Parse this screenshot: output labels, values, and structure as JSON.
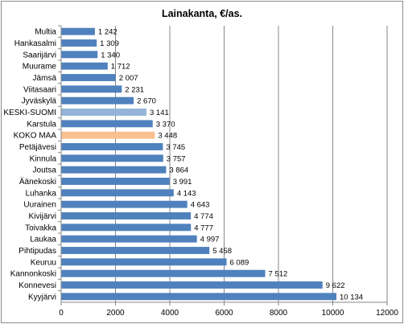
{
  "chart_data": {
    "type": "bar",
    "orientation": "horizontal",
    "title": "Lainakanta, €/as.",
    "xlabel": "",
    "ylabel": "",
    "xlim": [
      0,
      12000
    ],
    "ticks": [
      0,
      2000,
      4000,
      6000,
      8000,
      10000,
      12000
    ],
    "tick_labels": [
      "0",
      "2000",
      "4000",
      "6000",
      "8000",
      "10000",
      "12000"
    ],
    "grid": true,
    "legend": "none",
    "categories": [
      "Multia",
      "Hankasalmi",
      "Saarijärvi",
      "Muurame",
      "Jämsä",
      "Viitasaari",
      "Jyväskylä",
      "KESKI-SUOMI",
      "Karstula",
      "KOKO MAA",
      "Petäjävesi",
      "Kinnula",
      "Joutsa",
      "Äänekoski",
      "Luhanka",
      "Uurainen",
      "Kivijärvi",
      "Toivakka",
      "Laukaa",
      "Pihtipudas",
      "Keuruu",
      "Kannonkoski",
      "Konnevesi",
      "Kyyjärvi"
    ],
    "values": [
      1242,
      1309,
      1340,
      1712,
      2007,
      2231,
      2670,
      3141,
      3370,
      3448,
      3745,
      3757,
      3864,
      3991,
      4143,
      4643,
      4774,
      4777,
      4997,
      5458,
      6089,
      7512,
      9622,
      10134
    ],
    "value_labels": [
      "1 242",
      "1 309",
      "1 340",
      "1 712",
      "2 007",
      "2 231",
      "2 670",
      "3 141",
      "3 370",
      "3 448",
      "3 745",
      "3 757",
      "3 864",
      "3 991",
      "4 143",
      "4 643",
      "4 774",
      "4 777",
      "4 997",
      "5 458",
      "6 089",
      "7 512",
      "9 622",
      "10 134"
    ],
    "colors": {
      "default": "#4f81bd",
      "highlights": {
        "KESKI-SUOMI": "#95b3d7",
        "KOKO MAA": "#fac090"
      },
      "grid": "#878787",
      "axis": "#878787"
    }
  }
}
